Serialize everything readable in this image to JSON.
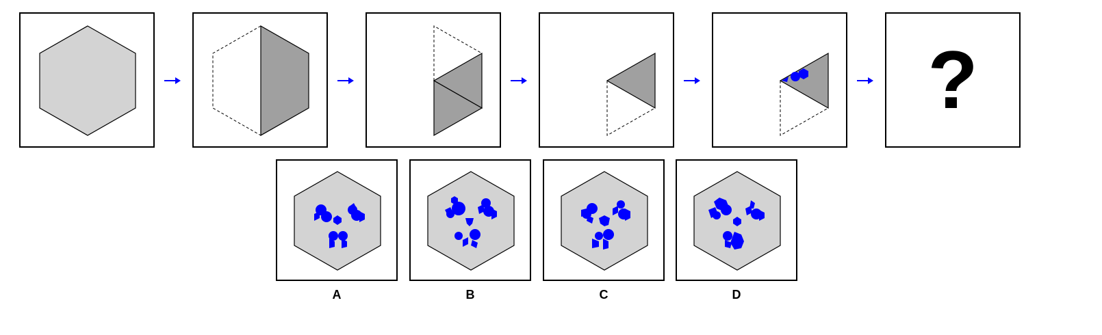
{
  "colors": {
    "hexagon_fill": "#d3d3d3",
    "shaded_fill": "#a0a0a0",
    "blob": "#0000ff",
    "arrow": "#0000ff",
    "outline": "#000000"
  },
  "sequence": {
    "step_count": 6,
    "question_mark": "?"
  },
  "options": [
    {
      "label": "A"
    },
    {
      "label": "B"
    },
    {
      "label": "C"
    },
    {
      "label": "D"
    }
  ]
}
